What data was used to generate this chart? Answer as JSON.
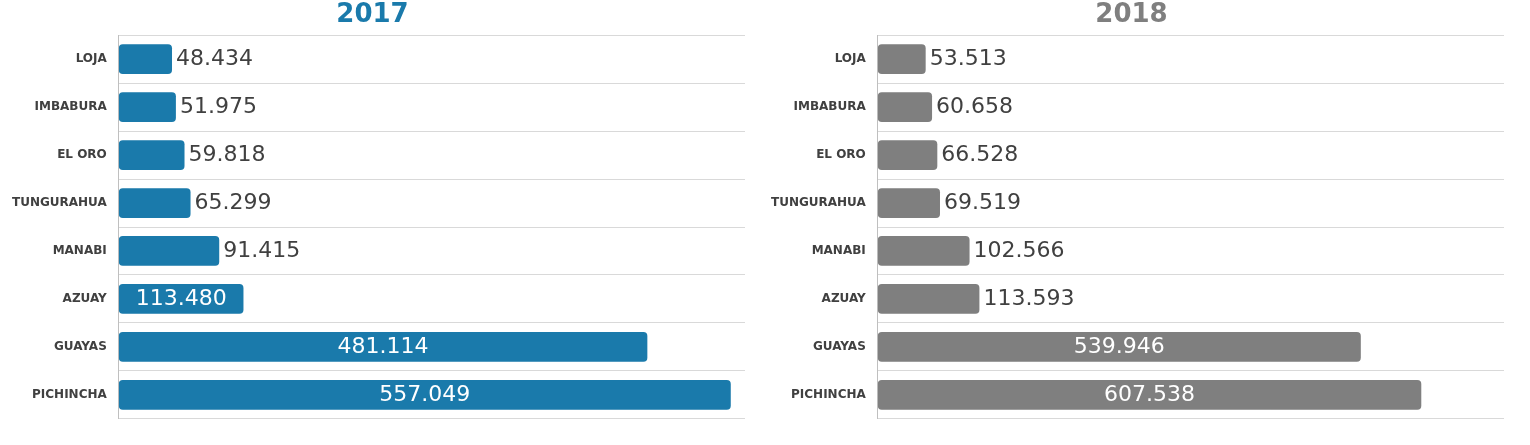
{
  "chart_data": [
    {
      "type": "bar",
      "orientation": "horizontal",
      "title": "2017",
      "categories": [
        "LOJA",
        "IMBABURA",
        "EL ORO",
        "TUNGURAHUA",
        "MANABI",
        "AZUAY",
        "GUAYAS",
        "PICHINCHA"
      ],
      "values": [
        48434,
        51975,
        59818,
        65299,
        91415,
        113480,
        481114,
        557049
      ],
      "value_labels": [
        "48.434",
        "51.975",
        "59.818",
        "65.299",
        "91.415",
        "113.480",
        "481.114",
        "557.049"
      ],
      "color": "#1a7aab",
      "xlim": [
        0,
        570000
      ],
      "grid": "y",
      "legend": false
    },
    {
      "type": "bar",
      "orientation": "horizontal",
      "title": "2018",
      "categories": [
        "LOJA",
        "IMBABURA",
        "EL ORO",
        "TUNGURAHUA",
        "MANABI",
        "AZUAY",
        "GUAYAS",
        "PICHINCHA"
      ],
      "values": [
        53513,
        60658,
        66528,
        69519,
        102566,
        113593,
        539946,
        607538
      ],
      "value_labels": [
        "53.513",
        "60.658",
        "66.528",
        "69.519",
        "102.566",
        "113.593",
        "539.946",
        "607.538"
      ],
      "color": "#7f7f7f",
      "xlim": [
        0,
        700000
      ],
      "grid": "y",
      "legend": false
    }
  ]
}
